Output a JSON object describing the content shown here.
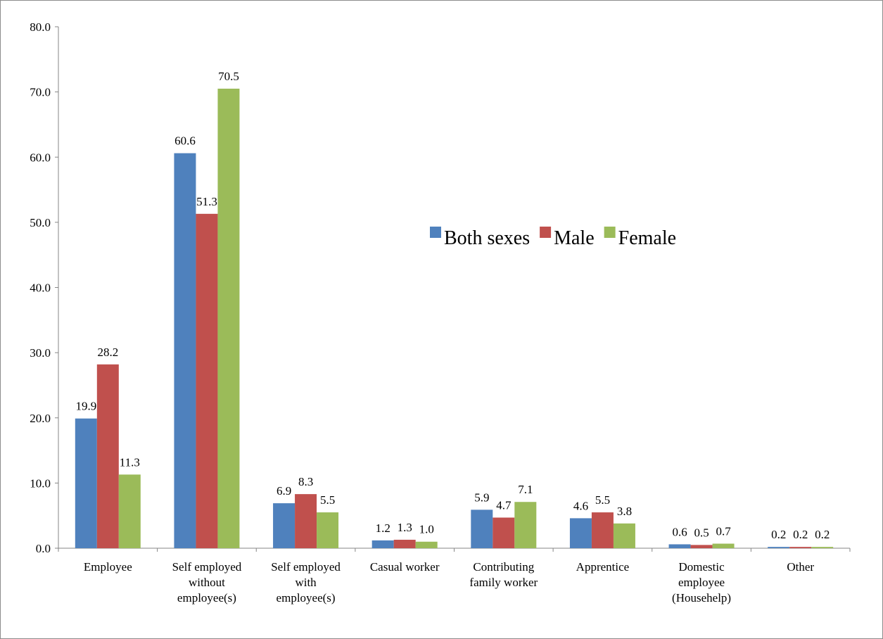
{
  "chart_data": {
    "type": "bar",
    "categories": [
      [
        "Employee"
      ],
      [
        "Self employed",
        "without",
        "employee(s)"
      ],
      [
        "Self employed",
        "with",
        "employee(s)"
      ],
      [
        "Casual worker"
      ],
      [
        "Contributing",
        "family worker"
      ],
      [
        "Apprentice"
      ],
      [
        "Domestic",
        "employee",
        "(Househelp)"
      ],
      [
        "Other"
      ]
    ],
    "series": [
      {
        "name": "Both sexes",
        "color": "#4F81BD",
        "values": [
          19.9,
          60.6,
          6.9,
          1.2,
          5.9,
          4.6,
          0.6,
          0.2
        ]
      },
      {
        "name": "Male",
        "color": "#C0504D",
        "values": [
          28.2,
          51.3,
          8.3,
          1.3,
          4.7,
          5.5,
          0.5,
          0.2
        ]
      },
      {
        "name": "Female",
        "color": "#9BBB59",
        "values": [
          11.3,
          70.5,
          5.5,
          1.0,
          7.1,
          3.8,
          0.7,
          0.2
        ]
      }
    ],
    "ylim": [
      0,
      80
    ],
    "yticks": [
      0,
      10,
      20,
      30,
      40,
      50,
      60,
      70,
      80
    ],
    "tick_decimals": 1,
    "title": "",
    "xlabel": "",
    "ylabel": "",
    "legend_position": "inside-top-right",
    "grid": false
  }
}
